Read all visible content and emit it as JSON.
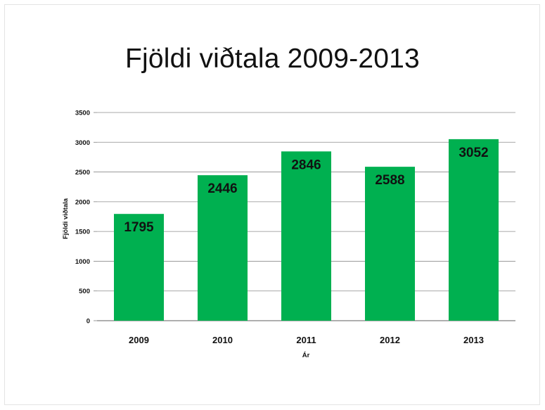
{
  "chart_data": {
    "type": "bar",
    "title": "Fjöldi viðtala 2009-2013",
    "xlabel": "Ár",
    "ylabel": "Fjöldi viðtala",
    "categories": [
      "2009",
      "2010",
      "2011",
      "2012",
      "2013"
    ],
    "values": [
      1795,
      2446,
      2846,
      2588,
      3052
    ],
    "data_labels": [
      "1795",
      "2446",
      "2846",
      "2588",
      "3052"
    ],
    "ylim": [
      0,
      3500
    ],
    "yticks": [
      0,
      500,
      1000,
      1500,
      2000,
      2500,
      3000,
      3500
    ],
    "grid": true,
    "legend": "none",
    "bar_color": "#00b050",
    "grid_color": "#8c8c8c"
  }
}
